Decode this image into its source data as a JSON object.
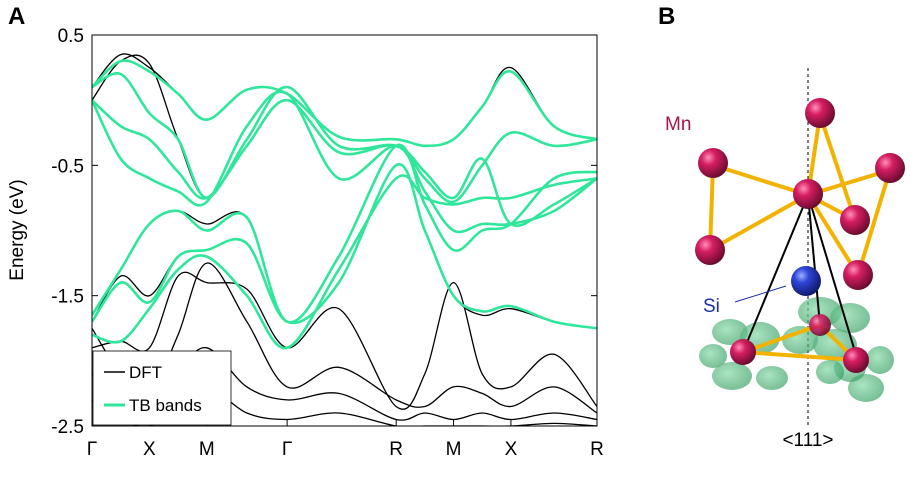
{
  "panel_a_label": "A",
  "panel_b_label": "B",
  "colors": {
    "dft": "#000000",
    "tb": "#2fe69a",
    "mn": "#c2195a",
    "si": "#2438c8",
    "bond": "#f2b300",
    "wannier": "#3aa86a",
    "mn_label": "#a3164e",
    "si_label": "#1a2fa8"
  },
  "chart_data": {
    "type": "line",
    "title": "",
    "xlabel": "",
    "ylabel": "Energy (eV)",
    "ylim": [
      -2.5,
      0.5
    ],
    "yticks": [
      0.5,
      -0.5,
      -1.5,
      -2.5
    ],
    "ytick_labels": [
      "0.5",
      "-0.5",
      "-1.5",
      "-2.5"
    ],
    "xlim": [
      0,
      8.8
    ],
    "xticks": [
      0,
      1.0,
      2.0,
      3.4,
      5.3,
      6.3,
      7.3,
      8.8
    ],
    "xtick_labels": [
      "Γ",
      "X",
      "M",
      "Γ",
      "R",
      "M",
      "X",
      "R"
    ],
    "legend": {
      "placement": "bottom-left",
      "entries": [
        "DFT",
        "TB bands"
      ]
    },
    "series": [
      {
        "name": "DFT",
        "kind": "dft",
        "x": [
          0,
          0.5,
          1.0,
          1.5,
          2.0,
          2.7,
          3.4,
          4.3,
          5.3,
          5.8,
          6.3,
          6.8,
          7.3,
          8.05,
          8.8
        ],
        "values": [
          0.1,
          0.35,
          0.25,
          0.05,
          -0.15,
          0.08,
          0.05,
          -0.28,
          -0.3,
          -0.35,
          -0.3,
          -0.05,
          0.25,
          -0.2,
          -0.3
        ]
      },
      {
        "name": "DFT",
        "kind": "dft",
        "x": [
          0,
          0.5,
          1.0,
          1.5,
          2.0,
          2.7,
          3.4,
          4.3,
          5.3,
          5.8,
          6.3,
          6.8,
          7.3,
          8.05,
          8.8
        ],
        "values": [
          0.0,
          0.3,
          0.28,
          -0.3,
          -0.75,
          -0.3,
          0.1,
          -0.35,
          -0.35,
          -0.55,
          -0.75,
          -0.45,
          -0.95,
          -0.8,
          -0.6
        ]
      },
      {
        "name": "DFT",
        "kind": "dft",
        "x": [
          0,
          0.5,
          1.0,
          1.5,
          2.0,
          2.7,
          3.4,
          4.3,
          5.3,
          5.8,
          6.3,
          6.8,
          7.3,
          8.05,
          8.8
        ],
        "values": [
          -1.65,
          -1.3,
          -0.95,
          -0.85,
          -0.95,
          -0.9,
          -1.7,
          -1.2,
          -0.35,
          -0.8,
          -1.15,
          -1.0,
          -0.95,
          -0.6,
          -0.55
        ]
      },
      {
        "name": "DFT",
        "kind": "dft",
        "x": [
          0,
          0.5,
          1.0,
          1.5,
          2.0,
          2.7,
          3.4,
          4.3,
          5.3,
          5.8,
          6.3,
          6.8,
          7.3,
          8.05,
          8.8
        ],
        "values": [
          -1.7,
          -1.35,
          -1.5,
          -1.2,
          -1.15,
          -1.1,
          -1.7,
          -1.4,
          -0.5,
          -1.0,
          -1.5,
          -1.65,
          -1.6,
          -1.7,
          -1.75
        ]
      },
      {
        "name": "DFT",
        "kind": "dft",
        "x": [
          0,
          0.5,
          1.0,
          1.5,
          2.0,
          2.7,
          3.4,
          4.3,
          5.3,
          5.8,
          6.3,
          6.8,
          7.3,
          8.05,
          8.8
        ],
        "values": [
          -1.9,
          -1.85,
          -1.9,
          -1.35,
          -1.4,
          -1.45,
          -1.9,
          -1.6,
          -2.35,
          -2.1,
          -1.4,
          -2.1,
          -2.2,
          -1.95,
          -2.35
        ]
      },
      {
        "name": "DFT",
        "kind": "dft",
        "x": [
          0,
          0.5,
          1.0,
          1.5,
          2.0,
          2.7,
          3.4,
          4.3,
          5.3,
          5.8,
          6.3,
          6.8,
          7.3,
          8.05,
          8.8
        ],
        "values": [
          -1.75,
          -2.1,
          -2.25,
          -1.8,
          -1.25,
          -1.7,
          -2.2,
          -2.05,
          -2.3,
          -2.35,
          -2.2,
          -2.25,
          -2.35,
          -2.2,
          -2.4
        ]
      },
      {
        "name": "DFT",
        "kind": "dft",
        "x": [
          0,
          0.5,
          1.0,
          1.5,
          2.0,
          2.7,
          3.4,
          4.3,
          5.3,
          5.8,
          6.3,
          6.8,
          7.3,
          8.05,
          8.8
        ],
        "values": [
          -2.1,
          -2.3,
          -2.45,
          -2.1,
          -1.9,
          -2.2,
          -2.3,
          -2.25,
          -2.45,
          -2.4,
          -2.45,
          -2.4,
          -2.45,
          -2.4,
          -2.45
        ]
      },
      {
        "name": "DFT",
        "kind": "dft",
        "x": [
          0,
          0.5,
          1.0,
          1.5,
          2.0,
          2.7,
          3.4,
          4.3,
          5.3,
          5.8,
          6.3,
          6.8,
          7.3,
          8.05,
          8.8
        ],
        "values": [
          -2.3,
          -2.45,
          -2.5,
          -2.35,
          -2.2,
          -2.4,
          -2.45,
          -2.4,
          -2.5,
          -2.5,
          -2.5,
          -2.5,
          -2.5,
          -2.48,
          -2.5
        ]
      },
      {
        "name": "TB bands",
        "kind": "tb",
        "x": [
          0,
          0.5,
          1.0,
          1.5,
          2.0,
          2.7,
          3.4,
          4.3,
          5.3,
          5.8,
          6.3,
          6.8,
          7.3,
          8.05,
          8.8
        ],
        "values": [
          0.1,
          0.3,
          0.22,
          0.05,
          -0.15,
          0.08,
          0.05,
          -0.28,
          -0.3,
          -0.35,
          -0.3,
          -0.05,
          0.22,
          -0.2,
          -0.3
        ]
      },
      {
        "name": "TB bands",
        "kind": "tb",
        "x": [
          0,
          0.5,
          1.0,
          1.5,
          2.0,
          2.7,
          3.4,
          4.3,
          5.3,
          5.8,
          6.3,
          6.8,
          7.3,
          8.05,
          8.8
        ],
        "values": [
          0.1,
          0.2,
          -0.1,
          -0.3,
          -0.75,
          -0.3,
          0.1,
          -0.35,
          -0.35,
          -0.55,
          -0.75,
          -0.45,
          -0.95,
          -0.8,
          -0.6
        ]
      },
      {
        "name": "TB bands",
        "kind": "tb",
        "x": [
          0,
          0.5,
          1.0,
          1.5,
          2.0,
          2.7,
          3.4,
          4.3,
          5.3,
          5.8,
          6.3,
          6.8,
          7.3,
          8.05,
          8.8
        ],
        "values": [
          0.0,
          -0.2,
          -0.3,
          -0.55,
          -0.75,
          -0.35,
          0.0,
          -0.4,
          -0.35,
          -0.6,
          -0.78,
          -0.5,
          -0.25,
          -0.35,
          -0.3
        ]
      },
      {
        "name": "TB bands",
        "kind": "tb",
        "x": [
          0,
          0.5,
          1.0,
          1.5,
          2.0,
          2.7,
          3.4,
          4.3,
          5.3,
          5.8,
          6.3,
          6.8,
          7.3,
          8.05,
          8.8
        ],
        "values": [
          0.0,
          -0.45,
          -0.6,
          -0.7,
          -0.78,
          -0.2,
          0.05,
          -0.6,
          -0.35,
          -0.7,
          -1.0,
          -0.95,
          -0.95,
          -0.85,
          -0.6
        ]
      },
      {
        "name": "TB bands",
        "kind": "tb",
        "x": [
          0,
          0.5,
          1.0,
          1.5,
          2.0,
          2.7,
          3.4,
          4.3,
          5.3,
          5.8,
          6.3,
          6.8,
          7.3,
          8.05,
          8.8
        ],
        "values": [
          -1.65,
          -1.3,
          -0.95,
          -0.85,
          -1.0,
          -0.9,
          -1.7,
          -1.2,
          -0.35,
          -0.8,
          -1.15,
          -1.0,
          -0.95,
          -0.6,
          -0.55
        ]
      },
      {
        "name": "TB bands",
        "kind": "tb",
        "x": [
          0,
          0.5,
          1.0,
          1.5,
          2.0,
          2.7,
          3.4,
          4.3,
          5.3,
          5.8,
          6.3,
          6.8,
          7.3,
          8.05,
          8.8
        ],
        "values": [
          -1.7,
          -1.4,
          -1.55,
          -1.2,
          -1.15,
          -1.1,
          -1.7,
          -1.4,
          -0.5,
          -1.0,
          -1.5,
          -1.62,
          -1.58,
          -1.7,
          -1.75
        ]
      },
      {
        "name": "TB bands",
        "kind": "tb",
        "x": [
          0,
          0.5,
          1.0,
          1.5,
          2.0,
          2.7,
          3.4,
          4.3,
          5.3,
          5.8,
          6.3,
          6.8,
          7.3,
          8.05,
          8.8
        ],
        "values": [
          -1.8,
          -1.85,
          -1.6,
          -1.3,
          -1.2,
          -1.5,
          -1.9,
          -1.3,
          -0.6,
          -0.75,
          -0.8,
          -0.75,
          -0.75,
          -0.65,
          -0.6
        ]
      }
    ]
  },
  "structure": {
    "mn_label": "Mn",
    "si_label": "Si",
    "axis_label": "<111>"
  }
}
